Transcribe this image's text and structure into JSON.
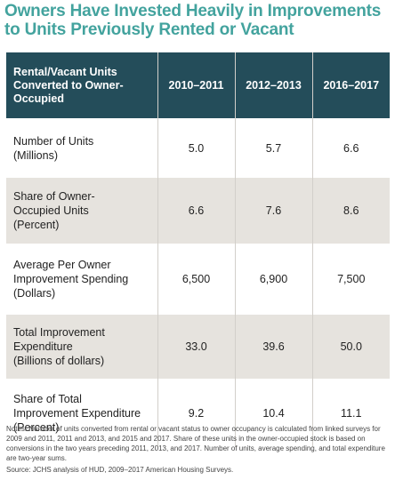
{
  "title_line1": "Owners Have Invested Heavily in Improvements",
  "title_line2": "to Units Previously Rented or Vacant",
  "table": {
    "header": [
      "Rental/Vacant Units Converted to Owner-Occupied",
      "2010–2011",
      "2012–2013",
      "2016–2017"
    ],
    "rows": [
      {
        "label": [
          "Number of Units",
          "(Millions)"
        ],
        "values": [
          "5.0",
          "5.7",
          "6.6"
        ]
      },
      {
        "label": [
          "Share of Owner-",
          "Occupied Units",
          "(Percent)"
        ],
        "values": [
          "6.6",
          "7.6",
          "8.6"
        ]
      },
      {
        "label": [
          "Average Per Owner",
          "Improvement Spending",
          "(Dollars)"
        ],
        "values": [
          "6,500",
          "6,900",
          "7,500"
        ]
      },
      {
        "label": [
          "Total Improvement",
          "Expenditure",
          "(Billions of dollars)"
        ],
        "values": [
          "33.0",
          "39.6",
          "50.0"
        ]
      },
      {
        "label": [
          "Share of Total",
          "Improvement Expenditure",
          "(Percent)"
        ],
        "values": [
          "9.2",
          "10.4",
          "11.1"
        ]
      }
    ]
  },
  "notes": "Notes: Number of units converted from rental or vacant status to owner occupancy is calculated from linked surveys for 2009 and 2011, 2011 and 2013, and 2015 and 2017. Share of these units in the owner-occupied stock is based on conversions in the two years preceding 2011, 2013, and 2017. Number of units, average spending, and total expenditure are two-year sums.",
  "source": "Source: JCHS analysis of HUD, 2009–2017 American Housing Surveys."
}
